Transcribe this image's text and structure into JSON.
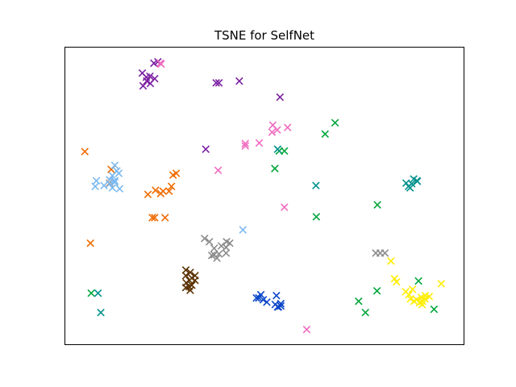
{
  "chart_data": {
    "type": "scatter",
    "title": "TSNE for SelfNet",
    "xlabel": "",
    "ylabel": "",
    "marker": "x",
    "xlim": [
      0,
      100
    ],
    "ylim": [
      0,
      100
    ],
    "grid": false,
    "axis_ticks_shown": false,
    "legend": "none",
    "series": [
      {
        "color": "#7b1fa2",
        "points": [
          [
            22.3,
            94.6
          ],
          [
            23.3,
            95.1
          ],
          [
            19.4,
            91.3
          ],
          [
            21.3,
            90.2
          ],
          [
            20.4,
            89.9
          ],
          [
            22.5,
            89.4
          ],
          [
            20.5,
            88.6
          ],
          [
            21.4,
            87.8
          ],
          [
            19.6,
            87.0
          ],
          [
            37.9,
            88.0
          ],
          [
            38.6,
            88.0
          ],
          [
            43.7,
            88.6
          ],
          [
            53.9,
            83.2
          ],
          [
            35.3,
            65.7
          ]
        ]
      },
      {
        "color": "#f06cc0",
        "points": [
          [
            23.9,
            94.6
          ],
          [
            24.1,
            94.3
          ],
          [
            52.1,
            73.8
          ],
          [
            53.2,
            72.2
          ],
          [
            51.9,
            71.4
          ],
          [
            55.8,
            73.0
          ],
          [
            48.7,
            67.8
          ],
          [
            45.2,
            67.6
          ],
          [
            45.2,
            66.8
          ],
          [
            38.4,
            58.6
          ],
          [
            55.0,
            46.2
          ],
          [
            60.6,
            5.1
          ]
        ]
      },
      {
        "color": "#00a63c",
        "points": [
          [
            67.7,
            74.6
          ],
          [
            65.2,
            70.8
          ],
          [
            53.7,
            65.1
          ],
          [
            55.0,
            65.1
          ],
          [
            52.6,
            59.2
          ],
          [
            63.0,
            43.0
          ],
          [
            78.3,
            47.0
          ],
          [
            78.2,
            18.1
          ],
          [
            88.6,
            21.4
          ],
          [
            73.6,
            14.6
          ],
          [
            75.3,
            10.8
          ],
          [
            92.5,
            11.9
          ],
          [
            6.6,
            17.3
          ]
        ]
      },
      {
        "color": "#00918c",
        "points": [
          [
            53.3,
            65.7
          ],
          [
            62.9,
            53.5
          ],
          [
            87.4,
            55.7
          ],
          [
            88.2,
            55.1
          ],
          [
            85.5,
            54.3
          ],
          [
            86.9,
            54.1
          ],
          [
            86.1,
            53.2
          ],
          [
            88.3,
            54.9
          ],
          [
            86.5,
            52.7
          ],
          [
            8.3,
            17.3
          ],
          [
            9.0,
            10.8
          ]
        ]
      },
      {
        "color": "#ef6c00",
        "points": [
          [
            5.0,
            64.9
          ],
          [
            27.1,
            57.0
          ],
          [
            27.9,
            57.6
          ],
          [
            26.7,
            53.2
          ],
          [
            22.7,
            51.9
          ],
          [
            24.6,
            51.6
          ],
          [
            24.0,
            50.8
          ],
          [
            26.1,
            51.6
          ],
          [
            20.8,
            50.5
          ],
          [
            11.6,
            58.9
          ],
          [
            11.2,
            54.3
          ],
          [
            21.9,
            42.7
          ],
          [
            22.5,
            42.7
          ],
          [
            25.1,
            42.7
          ],
          [
            6.4,
            34.1
          ]
        ]
      },
      {
        "color": "#7cb9f0",
        "points": [
          [
            12.5,
            60.3
          ],
          [
            13.0,
            58.4
          ],
          [
            11.9,
            56.8
          ],
          [
            13.5,
            57.6
          ],
          [
            11.2,
            55.4
          ],
          [
            7.9,
            55.1
          ],
          [
            12.5,
            55.1
          ],
          [
            11.2,
            54.1
          ],
          [
            7.6,
            53.2
          ],
          [
            9.8,
            53.5
          ],
          [
            11.9,
            52.7
          ],
          [
            13.7,
            52.4
          ],
          [
            12.5,
            54.6
          ],
          [
            44.6,
            38.6
          ]
        ]
      },
      {
        "color": "#8c8c8c",
        "points": [
          [
            35.0,
            35.7
          ],
          [
            36.2,
            34.6
          ],
          [
            39.2,
            33.2
          ],
          [
            40.5,
            34.6
          ],
          [
            41.3,
            34.1
          ],
          [
            40.4,
            32.7
          ],
          [
            37.4,
            32.4
          ],
          [
            38.6,
            30.5
          ],
          [
            37.4,
            30.2
          ],
          [
            40.4,
            30.8
          ],
          [
            38.1,
            29.1
          ],
          [
            36.8,
            30.0
          ],
          [
            77.9,
            30.8
          ],
          [
            79.0,
            30.8
          ],
          [
            80.2,
            30.8
          ]
        ]
      },
      {
        "color": "#5a3200",
        "points": [
          [
            30.3,
            25.1
          ],
          [
            31.4,
            24.3
          ],
          [
            32.6,
            23.2
          ],
          [
            30.3,
            23.2
          ],
          [
            31.8,
            22.4
          ],
          [
            31.2,
            21.6
          ],
          [
            32.6,
            21.6
          ],
          [
            30.4,
            20.8
          ],
          [
            31.8,
            20.0
          ],
          [
            31.1,
            19.5
          ],
          [
            30.3,
            19.2
          ],
          [
            31.4,
            18.3
          ]
        ]
      },
      {
        "color": "#0a46c8",
        "points": [
          [
            49.1,
            16.8
          ],
          [
            48.6,
            15.7
          ],
          [
            49.7,
            15.1
          ],
          [
            48.0,
            15.7
          ],
          [
            53.0,
            16.5
          ],
          [
            50.6,
            14.3
          ],
          [
            54.1,
            13.8
          ],
          [
            54.1,
            13.0
          ],
          [
            52.7,
            13.5
          ],
          [
            53.3,
            12.7
          ],
          [
            53.5,
            12.7
          ]
        ]
      },
      {
        "color": "#ffee00",
        "points": [
          [
            81.7,
            28.1
          ],
          [
            82.6,
            22.2
          ],
          [
            83.1,
            21.1
          ],
          [
            87.1,
            18.6
          ],
          [
            85.4,
            17.8
          ],
          [
            86.2,
            16.8
          ],
          [
            86.6,
            15.4
          ],
          [
            88.1,
            15.1
          ],
          [
            89.3,
            15.9
          ],
          [
            90.3,
            16.5
          ],
          [
            91.3,
            16.2
          ],
          [
            90.2,
            15.4
          ],
          [
            89.6,
            14.6
          ],
          [
            87.5,
            14.6
          ],
          [
            89.1,
            14.3
          ],
          [
            88.9,
            14.1
          ],
          [
            89.5,
            13.5
          ],
          [
            94.3,
            20.5
          ]
        ]
      }
    ]
  }
}
